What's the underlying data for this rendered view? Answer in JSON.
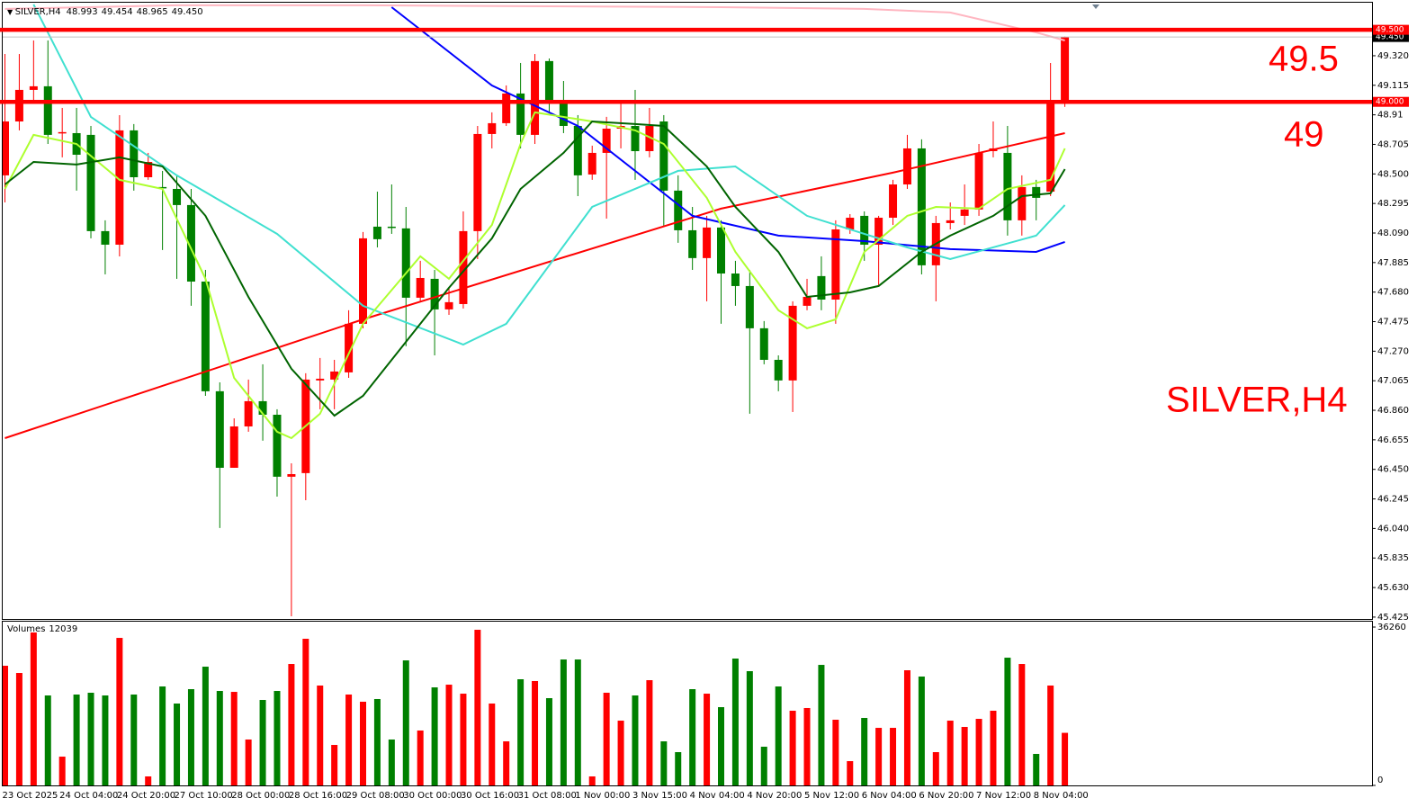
{
  "chart_data": {
    "type": "candlestick",
    "symbol": "SILVER,H4",
    "header_ohlc": [
      "48.993",
      "49.454",
      "48.965",
      "49.450"
    ],
    "volume_title": "Volumes",
    "annotations": [
      "49.5",
      "49",
      "SILVER,H4"
    ],
    "up_color": "#ff0000",
    "down_color": "#008000",
    "categories": [
      "23 Oct 2025",
      null,
      null,
      null,
      "24 Oct 04:00",
      null,
      null,
      null,
      "24 Oct 20:00",
      null,
      null,
      null,
      "27 Oct 10:00",
      null,
      null,
      null,
      "28 Oct 00:00",
      null,
      null,
      null,
      "28 Oct 16:00",
      null,
      null,
      null,
      "29 Oct 08:00",
      null,
      null,
      null,
      "30 Oct 00:00",
      null,
      null,
      null,
      "30 Oct 16:00",
      null,
      null,
      null,
      "31 Oct 08:00",
      null,
      null,
      null,
      "1 Nov 00:00",
      null,
      null,
      null,
      "3 Nov 15:00",
      null,
      null,
      null,
      "4 Nov 04:00",
      null,
      null,
      null,
      "4 Nov 20:00",
      null,
      null,
      null,
      "5 Nov 12:00",
      null,
      null,
      null,
      "6 Nov 04:00",
      null,
      null,
      null,
      "6 Nov 20:00",
      null,
      null,
      null,
      "7 Nov 12:00",
      null,
      null,
      null,
      "8 Nov 04:00",
      null,
      null
    ],
    "open": [
      48.49,
      48.864,
      49.083,
      49.108,
      48.783,
      48.783,
      48.771,
      48.103,
      48.009,
      48.802,
      48.477,
      48.409,
      48.396,
      48.284,
      47.753,
      46.992,
      46.461,
      46.748,
      46.923,
      46.829,
      46.399,
      46.424,
      47.067,
      47.073,
      47.123,
      47.46,
      48.134,
      48.134,
      48.122,
      47.641,
      47.772,
      47.56,
      47.597,
      48.103,
      48.777,
      48.852,
      49.058,
      48.771,
      49.283,
      48.989,
      48.833,
      48.496,
      48.646,
      48.814,
      48.833,
      48.658,
      48.864,
      48.384,
      48.109,
      47.916,
      48.128,
      47.809,
      47.722,
      47.429,
      47.21,
      47.067,
      47.585,
      47.791,
      47.628,
      48.115,
      48.209,
      48.009,
      48.196,
      48.427,
      48.677,
      47.866,
      48.159,
      48.209,
      48.253,
      48.658,
      48.646,
      48.178,
      48.409,
      48.377,
      48.993
    ],
    "high": [
      49.332,
      49.332,
      49.426,
      49.426,
      48.958,
      48.958,
      48.833,
      48.178,
      48.908,
      48.846,
      48.646,
      48.521,
      48.49,
      48.396,
      47.834,
      47.054,
      46.804,
      47.073,
      47.179,
      46.867,
      46.492,
      47.117,
      47.223,
      47.21,
      47.554,
      48.097,
      48.377,
      48.427,
      48.271,
      47.897,
      47.834,
      47.71,
      48.24,
      48.833,
      48.927,
      49.114,
      49.27,
      49.332,
      49.301,
      49.145,
      48.908,
      48.696,
      48.896,
      48.989,
      49.083,
      48.958,
      48.908,
      48.49,
      48.271,
      48.209,
      48.178,
      47.897,
      47.834,
      47.479,
      47.241,
      47.616,
      47.772,
      47.928,
      48.178,
      48.221,
      48.24,
      48.209,
      48.459,
      48.771,
      48.74,
      48.209,
      48.302,
      48.427,
      48.708,
      48.864,
      48.833,
      48.49,
      48.459,
      49.27,
      49.454
    ],
    "low": [
      48.302,
      48.802,
      48.989,
      48.708,
      48.615,
      48.384,
      48.053,
      47.803,
      47.928,
      48.384,
      48.459,
      47.972,
      47.772,
      47.585,
      46.96,
      46.043,
      46.461,
      46.711,
      46.649,
      46.261,
      45.431,
      46.236,
      46.867,
      46.867,
      47.085,
      47.429,
      47.99,
      48.084,
      47.304,
      47.616,
      47.241,
      47.522,
      47.566,
      47.909,
      48.677,
      48.833,
      48.677,
      48.708,
      48.927,
      48.783,
      48.346,
      48.459,
      48.19,
      48.677,
      48.459,
      48.615,
      48.134,
      48.022,
      47.834,
      47.616,
      47.46,
      47.585,
      46.836,
      47.179,
      46.992,
      46.848,
      47.554,
      47.554,
      47.46,
      48.084,
      47.897,
      47.722,
      48.146,
      48.396,
      47.803,
      47.616,
      48.115,
      48.146,
      48.209,
      48.615,
      48.072,
      48.072,
      48.178,
      48.346,
      48.965
    ],
    "close": [
      48.864,
      49.083,
      49.108,
      48.771,
      48.79,
      48.633,
      48.103,
      48.009,
      48.802,
      48.477,
      48.583,
      48.403,
      48.284,
      47.753,
      46.992,
      46.461,
      46.748,
      46.923,
      46.829,
      46.399,
      46.417,
      47.073,
      47.079,
      47.129,
      47.46,
      48.053,
      48.047,
      48.128,
      47.641,
      47.778,
      47.56,
      47.61,
      48.103,
      48.777,
      48.852,
      49.058,
      48.771,
      49.283,
      48.989,
      48.833,
      48.49,
      48.646,
      48.814,
      48.833,
      48.658,
      48.833,
      48.384,
      48.109,
      47.916,
      48.128,
      47.809,
      47.722,
      47.429,
      47.21,
      47.067,
      47.585,
      47.647,
      47.628,
      48.115,
      48.196,
      48.009,
      48.196,
      48.427,
      48.677,
      47.866,
      48.159,
      48.178,
      48.253,
      48.646,
      48.677,
      48.178,
      48.409,
      48.334,
      49.002,
      49.45
    ],
    "volumes": [
      27400,
      25750,
      35020,
      20600,
      6590,
      20810,
      21220,
      20600,
      33780,
      20810,
      2060,
      22660,
      18750,
      22040,
      27190,
      21630,
      21420,
      10510,
      19570,
      21630,
      27810,
      33580,
      22870,
      9270,
      20810,
      19160,
      19780,
      10510,
      28630,
      12570,
      22450,
      23070,
      21010,
      35640,
      18750,
      10090,
      24310,
      23900,
      19980,
      28840,
      28840,
      2060,
      21220,
      14830,
      20600,
      24100,
      10090,
      7620,
      22040,
      21010,
      17920,
      29050,
      26160,
      8860,
      22660,
      17100,
      17720,
      27600,
      15040,
      5560,
      15450,
      13180,
      13180,
      26370,
      24930,
      7620,
      14830,
      13390,
      15240,
      17100,
      29250,
      27810,
      7210,
      22870,
      12039
    ],
    "ylim": [
      45.412,
      49.688
    ],
    "yticks": [
      {
        "value": 49.32,
        "label": "49.320"
      },
      49.115,
      48.91,
      48.705,
      {
        "value": 48.5,
        "label": "48.500"
      },
      48.295,
      {
        "value": 48.09,
        "label": "48.090"
      },
      47.885,
      {
        "value": 47.68,
        "label": "47.680"
      },
      47.475,
      {
        "value": 47.27,
        "label": "47.270"
      },
      47.065,
      {
        "value": 46.86,
        "label": "46.860"
      },
      46.655,
      {
        "value": 46.45,
        "label": "46.450"
      },
      46.245,
      {
        "value": 46.04,
        "label": "46.040"
      },
      45.835,
      {
        "value": 45.63,
        "label": "45.630"
      },
      45.425
    ],
    "vlim": [
      0,
      36260
    ],
    "vticks": [
      0,
      36260
    ],
    "hlines": [
      {
        "value": 49.5,
        "label": "49.500",
        "color": "#ff0000"
      },
      {
        "value": 49.0,
        "label": "49.000",
        "color": "#ff0000"
      }
    ],
    "current_price": {
      "value": 49.45,
      "label": "49.450"
    },
    "indicators": [
      {
        "color": "#ff0000",
        "width": 2,
        "x": [
          0,
          25,
          50,
          62,
          74
        ],
        "values": [
          46.667,
          47.491,
          48.259,
          48.509,
          48.783
        ]
      },
      {
        "color": "#0000ff",
        "width": 2,
        "x": [
          27,
          34,
          40,
          48,
          54,
          60,
          66,
          72,
          74
        ],
        "values": [
          49.657,
          49.114,
          48.833,
          48.209,
          48.072,
          48.034,
          47.978,
          47.959,
          48.028
        ]
      },
      {
        "color": "#40e0d0",
        "width": 2,
        "x": [
          2,
          6,
          12,
          19,
          25,
          32,
          35,
          41,
          47,
          51,
          56,
          63,
          66,
          72,
          74
        ],
        "values": [
          49.676,
          48.896,
          48.49,
          48.084,
          47.585,
          47.316,
          47.46,
          48.271,
          48.521,
          48.552,
          48.209,
          47.99,
          47.909,
          48.072,
          48.284
        ]
      },
      {
        "color": "#adff2f",
        "width": 2,
        "x": [
          0,
          2,
          5,
          8,
          11,
          14,
          16,
          19,
          20,
          22,
          25,
          29,
          31,
          34,
          36,
          37,
          41,
          44,
          46,
          49,
          51,
          54,
          56,
          58,
          60,
          63,
          65,
          68,
          70,
          73,
          74
        ],
        "values": [
          48.396,
          48.771,
          48.708,
          48.459,
          48.396,
          47.772,
          47.085,
          46.711,
          46.667,
          46.836,
          47.46,
          47.928,
          47.772,
          48.146,
          48.708,
          48.927,
          48.864,
          48.802,
          48.708,
          48.334,
          47.959,
          47.554,
          47.429,
          47.491,
          47.959,
          48.209,
          48.271,
          48.259,
          48.396,
          48.459,
          48.677
        ]
      },
      {
        "color": "#006400",
        "width": 2,
        "x": [
          0,
          2,
          5,
          8,
          11,
          14,
          17,
          20,
          23,
          25,
          28,
          31,
          34,
          36,
          39,
          41,
          44,
          46,
          49,
          51,
          54,
          56,
          59,
          61,
          64,
          66,
          69,
          71,
          73,
          74
        ],
        "values": [
          48.427,
          48.583,
          48.565,
          48.615,
          48.552,
          48.209,
          47.647,
          47.148,
          46.823,
          46.96,
          47.335,
          47.71,
          48.053,
          48.396,
          48.646,
          48.864,
          48.846,
          48.833,
          48.552,
          48.271,
          47.959,
          47.647,
          47.678,
          47.722,
          47.959,
          48.072,
          48.209,
          48.346,
          48.365,
          48.533
        ]
      },
      {
        "color": "#ffb6c1",
        "width": 2,
        "x": [
          0,
          12,
          25,
          50,
          60,
          66,
          72,
          74
        ],
        "values": [
          49.645,
          49.67,
          49.67,
          49.657,
          49.645,
          49.62,
          49.482,
          49.426
        ]
      }
    ]
  }
}
